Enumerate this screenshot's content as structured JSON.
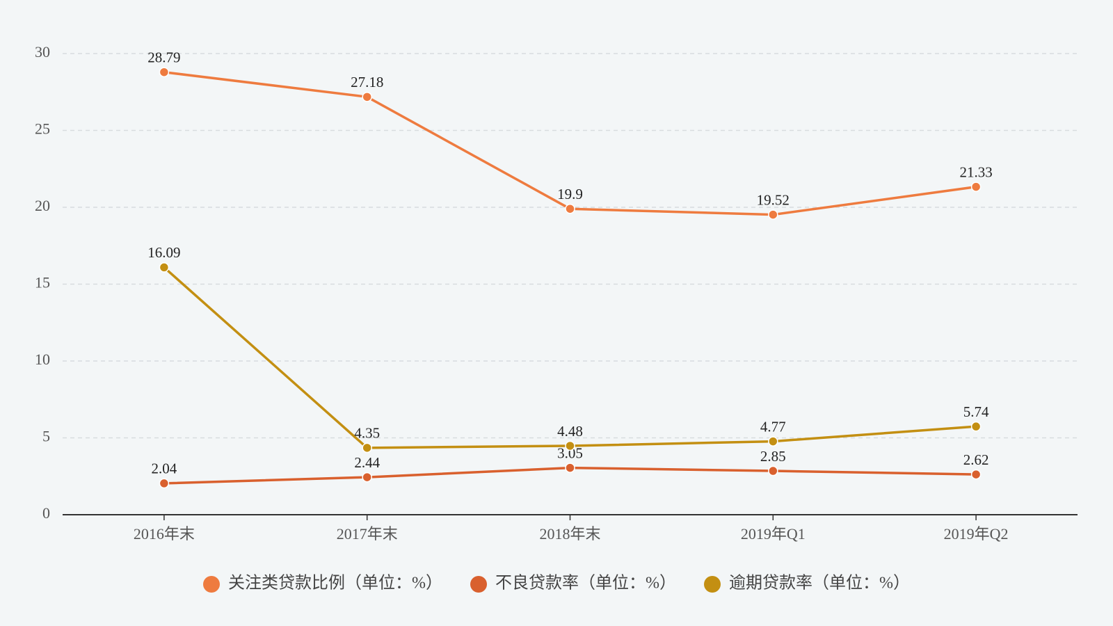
{
  "chart_data": {
    "type": "line",
    "categories": [
      "2016年末",
      "2017年末",
      "2018年末",
      "2019年Q1",
      "2019年Q2"
    ],
    "series": [
      {
        "name": "关注类贷款比例（单位：%）",
        "color": "#ee7b3f",
        "values": [
          28.79,
          27.18,
          19.9,
          19.52,
          21.33
        ]
      },
      {
        "name": "不良贷款率（单位：%）",
        "color": "#d9602e",
        "values": [
          2.04,
          2.44,
          3.05,
          2.85,
          2.62
        ]
      },
      {
        "name": "逾期贷款率（单位：%）",
        "color": "#c38f12",
        "values": [
          16.09,
          4.35,
          4.48,
          4.77,
          5.74
        ]
      }
    ],
    "ylim": [
      0,
      30
    ],
    "yticks": [
      0,
      5,
      10,
      15,
      20,
      25,
      30
    ],
    "grid": true,
    "legend": "bottom"
  }
}
